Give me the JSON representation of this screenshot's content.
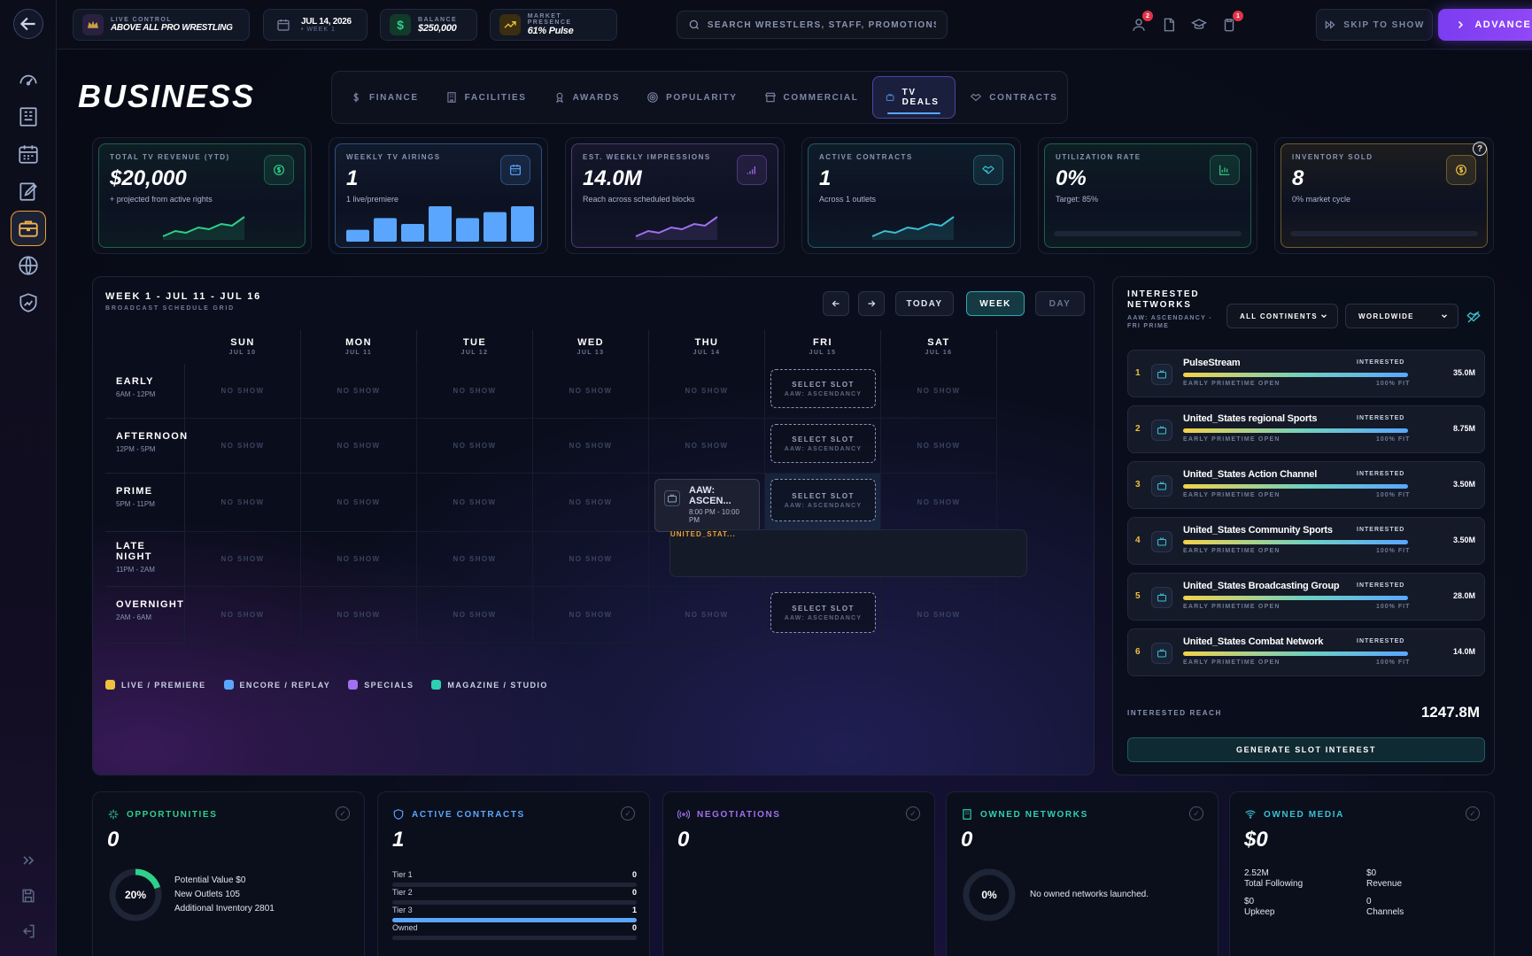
{
  "topbar": {
    "live_label": "LIVE CONTROL",
    "promotion": "ABOVE ALL PRO WRESTLING",
    "date": "JUL 14, 2026",
    "week": "• WEEK 1",
    "balance_label": "BALANCE",
    "balance": "$250,000",
    "presence_label": "MARKET PRESENCE",
    "presence": "61% Pulse",
    "search_placeholder": "SEARCH WRESTLERS, STAFF, PROMOTIONS...",
    "badge_people": "2",
    "badge_tasks": "1",
    "skip_label": "SKIP TO SHOW",
    "advance_label": "ADVANCE DAY"
  },
  "sidebar": {
    "items": [
      "back-icon",
      "gauge-icon",
      "roster-icon",
      "calendar-icon",
      "edit-icon",
      "briefcase-icon",
      "globe-icon",
      "shield-chart-icon"
    ],
    "active": "briefcase-icon"
  },
  "page_title": "BUSINESS",
  "tabs": [
    {
      "label": "FINANCE",
      "icon": "dollar-icon"
    },
    {
      "label": "FACILITIES",
      "icon": "building-icon"
    },
    {
      "label": "AWARDS",
      "icon": "award-icon"
    },
    {
      "label": "POPULARITY",
      "icon": "target-icon"
    },
    {
      "label": "COMMERCIAL",
      "icon": "store-icon"
    },
    {
      "label": "TV DEALS",
      "icon": "tv-icon",
      "active": true
    },
    {
      "label": "CONTRACTS",
      "icon": "handshake-icon"
    }
  ],
  "stats": [
    {
      "label": "TOTAL TV REVENUE (YTD)",
      "value": "$20,000",
      "sub": "+ projected from active rights",
      "accent": "#2fd08a",
      "icon": "dollar-circle-icon"
    },
    {
      "label": "WEEKLY TV AIRINGS",
      "value": "1",
      "sub": "1 live/premiere",
      "accent": "#5aa6ff",
      "icon": "calendar-icon",
      "bars": [
        2,
        4,
        3,
        6,
        4,
        5,
        6
      ]
    },
    {
      "label": "EST. WEEKLY IMPRESSIONS",
      "value": "14.0M",
      "sub": "Reach across scheduled blocks",
      "accent": "#a070f0",
      "icon": "signal-icon"
    },
    {
      "label": "ACTIVE CONTRACTS",
      "value": "1",
      "sub": "Across 1 outlets",
      "accent": "#3ac0d0",
      "icon": "handshake-icon"
    },
    {
      "label": "UTILIZATION RATE",
      "value": "0%",
      "sub": "Target: 85%",
      "accent": "#2fd08a",
      "icon": "bar-chart-icon",
      "progress": 0
    },
    {
      "label": "INVENTORY SOLD",
      "value": "8",
      "sub": "0% market cycle",
      "accent": "#f0c040",
      "icon": "coin-icon",
      "progress": 0
    }
  ],
  "schedule": {
    "title": "WEEK 1 - JUL 11 - JUL 16",
    "subtitle": "BROADCAST SCHEDULE GRID",
    "today_label": "TODAY",
    "week_label": "WEEK",
    "day_label": "DAY",
    "days": [
      {
        "d": "SUN",
        "dt": "JUL 10"
      },
      {
        "d": "MON",
        "dt": "JUL 11"
      },
      {
        "d": "TUE",
        "dt": "JUL 12"
      },
      {
        "d": "WED",
        "dt": "JUL 13"
      },
      {
        "d": "THU",
        "dt": "JUL 14"
      },
      {
        "d": "FRI",
        "dt": "JUL 15"
      },
      {
        "d": "SAT",
        "dt": "JUL 16"
      }
    ],
    "blocks": [
      {
        "n": "EARLY",
        "t": "6AM - 12PM"
      },
      {
        "n": "AFTERNOON",
        "t": "12PM - 5PM"
      },
      {
        "n": "PRIME",
        "t": "5PM - 11PM"
      },
      {
        "n": "LATE NIGHT",
        "t": "11PM - 2AM"
      },
      {
        "n": "OVERNIGHT",
        "t": "2AM - 6AM"
      }
    ],
    "empty_label": "NO SHOW",
    "slot_label": "SELECT SLOT",
    "slot_sub": "AAW: ASCENDANCY",
    "show": {
      "title": "AAW: ASCEN...",
      "time": "8:00 PM - 10:00 PM",
      "network": "UNITED_STAT..."
    },
    "legend": [
      {
        "label": "LIVE / PREMIERE",
        "color": "#f0c040"
      },
      {
        "label": "ENCORE / REPLAY",
        "color": "#5aa6ff"
      },
      {
        "label": "SPECIALS",
        "color": "#a070f0"
      },
      {
        "label": "MAGAZINE / STUDIO",
        "color": "#2fd0b0"
      }
    ]
  },
  "networks": {
    "title": "INTERESTED NETWORKS",
    "subtitle": "AAW: ASCENDANCY - FRI PRIME",
    "continent_filter": "ALL CONTINENTS",
    "region_filter": "WORLDWIDE",
    "list": [
      {
        "rank": "1",
        "name": "PulseStream",
        "status": "INTERESTED",
        "window": "EARLY PRIMETIME OPEN",
        "fit": "100% FIT",
        "reach": "35.0M"
      },
      {
        "rank": "2",
        "name": "United_States regional Sports",
        "status": "INTERESTED",
        "window": "EARLY PRIMETIME OPEN",
        "fit": "100% FIT",
        "reach": "8.75M"
      },
      {
        "rank": "3",
        "name": "United_States Action Channel",
        "status": "INTERESTED",
        "window": "EARLY PRIMETIME OPEN",
        "fit": "100% FIT",
        "reach": "3.50M"
      },
      {
        "rank": "4",
        "name": "United_States Community Sports",
        "status": "INTERESTED",
        "window": "EARLY PRIMETIME OPEN",
        "fit": "100% FIT",
        "reach": "3.50M"
      },
      {
        "rank": "5",
        "name": "United_States Broadcasting Group",
        "status": "INTERESTED",
        "window": "EARLY PRIMETIME OPEN",
        "fit": "100% FIT",
        "reach": "28.0M"
      },
      {
        "rank": "6",
        "name": "United_States Combat Network",
        "status": "INTERESTED",
        "window": "EARLY PRIMETIME OPEN",
        "fit": "100% FIT",
        "reach": "14.0M"
      }
    ],
    "reach_label": "INTERESTED REACH",
    "reach_value": "1247.8M",
    "generate_label": "GENERATE SLOT INTEREST"
  },
  "bottom": {
    "opportunities": {
      "title": "OPPORTUNITIES",
      "value": "0",
      "ring": "20%",
      "ring_fraction": 0.2,
      "lines": [
        "Potential Value $0",
        "New Outlets 105",
        "Additional Inventory 2801"
      ]
    },
    "active_contracts": {
      "title": "ACTIVE CONTRACTS",
      "value": "1",
      "tiers": [
        {
          "label": "Tier 1",
          "value": "0",
          "fill": 0
        },
        {
          "label": "Tier 2",
          "value": "0",
          "fill": 0
        },
        {
          "label": "Tier 3",
          "value": "1",
          "fill": 1
        },
        {
          "label": "Owned",
          "value": "0",
          "fill": 0
        }
      ]
    },
    "negotiations": {
      "title": "NEGOTIATIONS",
      "value": "0"
    },
    "owned_networks": {
      "title": "OWNED NETWORKS",
      "value": "0",
      "ring": "0%",
      "text": "No owned networks launched."
    },
    "owned_media": {
      "title": "OWNED MEDIA",
      "value": "$0",
      "following": "2.52M",
      "following_label": "Total Following",
      "revenue": "$0",
      "revenue_label": "Revenue",
      "upkeep": "$0",
      "upkeep_label": "Upkeep",
      "channels": "0",
      "channels_label": "Channels"
    }
  }
}
